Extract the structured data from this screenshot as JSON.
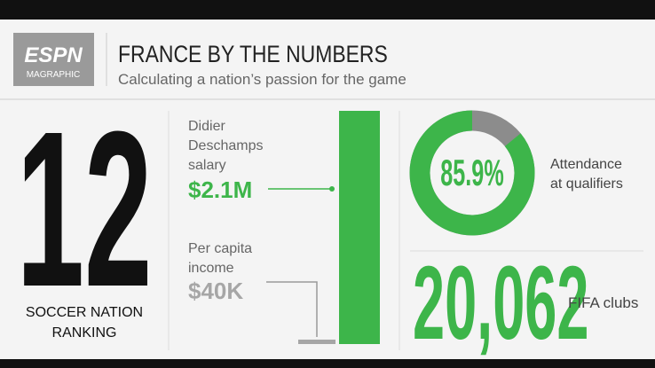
{
  "header": {
    "logo": "ESPN",
    "logo_sub": "MAGRAPHIC",
    "title": "FRANCE BY THE NUMBERS",
    "subtitle": "Calculating a nation’s passion for the game"
  },
  "ranking": {
    "value": 12,
    "label_lines": [
      "SOCCER NATION",
      "RANKING"
    ]
  },
  "comparison": {
    "items": [
      {
        "label_lines": [
          "Didier",
          "Deschamps",
          "salary"
        ],
        "value": 2100000,
        "value_label": "$2.1M",
        "color": "#3db54a"
      },
      {
        "label_lines": [
          "Per capita",
          "income"
        ],
        "value": 40000,
        "value_label": "$40K",
        "color": "#a6a6a6"
      }
    ]
  },
  "attendance": {
    "value": 85.9,
    "value_label": "85.9%",
    "label_lines": [
      "Attendance",
      "at qualifiers"
    ],
    "color": "#3db54a",
    "rest_color": "#8c8c8c"
  },
  "clubs": {
    "value": 20062,
    "value_label": "20,062",
    "label": "FIFA clubs"
  }
}
